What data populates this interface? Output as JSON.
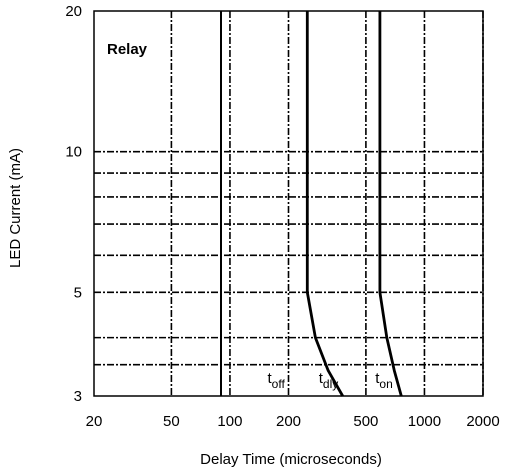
{
  "chart_data": {
    "type": "line",
    "title": "Relay",
    "xlabel": "Delay Time (microseconds)",
    "ylabel": "LED Current (mA)",
    "x_scale": "log",
    "y_scale": "log",
    "xlim": [
      20,
      2000
    ],
    "ylim": [
      3,
      20
    ],
    "x_ticks": [
      20,
      50,
      100,
      200,
      500,
      1000,
      2000
    ],
    "y_ticks": [
      3,
      5,
      10,
      20
    ],
    "x_gridlines": [
      50,
      100,
      200,
      500,
      1000,
      2000
    ],
    "y_gridlines": [
      3.5,
      4,
      5,
      6,
      7,
      8,
      9,
      10
    ],
    "grid": true,
    "series": [
      {
        "name": "t_off",
        "label_base": "t",
        "label_sub": "off",
        "x": [
          90,
          90
        ],
        "y": [
          3,
          20
        ]
      },
      {
        "name": "t_dly",
        "label_base": "t",
        "label_sub": "dly",
        "x": [
          250,
          250,
          275,
          320,
          380
        ],
        "y": [
          20,
          5,
          4,
          3.4,
          3
        ]
      },
      {
        "name": "t_on",
        "label_base": "t",
        "label_sub": "on",
        "x": [
          590,
          590,
          640,
          700,
          760
        ],
        "y": [
          20,
          5,
          4,
          3.4,
          3
        ]
      }
    ]
  }
}
